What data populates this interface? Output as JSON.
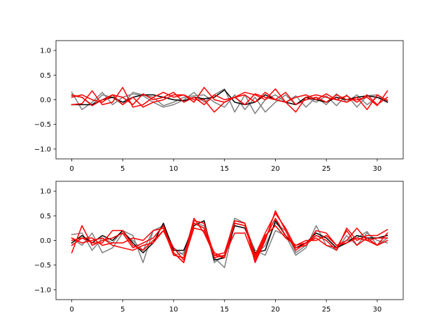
{
  "chart_data": [
    {
      "type": "line",
      "title": "",
      "xlabel": "",
      "ylabel": "",
      "xlim": [
        -1.55,
        32.55
      ],
      "ylim": [
        -1.2,
        1.2
      ],
      "xticks": [
        0,
        5,
        10,
        15,
        20,
        25,
        30
      ],
      "xtick_labels": [
        "0",
        "5",
        "10",
        "15",
        "20",
        "25",
        "30"
      ],
      "yticks": [
        -1.0,
        -0.5,
        0.0,
        0.5,
        1.0
      ],
      "ytick_labels": [
        "−1.0",
        "−0.5",
        "0.0",
        "0.5",
        "1.0"
      ],
      "grid": false,
      "x": [
        0,
        1,
        2,
        3,
        4,
        5,
        6,
        7,
        8,
        9,
        10,
        11,
        12,
        13,
        14,
        15,
        16,
        17,
        18,
        19,
        20,
        21,
        22,
        23,
        24,
        25,
        26,
        27,
        28,
        29,
        30,
        31
      ],
      "series": [
        {
          "color": "#808080",
          "values": [
            0.15,
            -0.2,
            -0.05,
            0.15,
            -0.1,
            0.05,
            0.12,
            0.08,
            -0.05,
            -0.15,
            -0.1,
            0.0,
            0.15,
            -0.05,
            0.1,
            0.22,
            -0.25,
            0.1,
            -0.28,
            0.0,
            0.1,
            -0.05,
            0.08,
            -0.15,
            0.05,
            -0.1,
            0.12,
            -0.05,
            0.1,
            -0.1,
            0.05,
            0.0
          ]
        },
        {
          "color": "#808080",
          "values": [
            0.08,
            0.05,
            -0.1,
            0.1,
            0.05,
            -0.1,
            0.15,
            0.1,
            0.05,
            -0.12,
            -0.05,
            0.05,
            0.08,
            0.1,
            -0.05,
            -0.15,
            0.1,
            -0.2,
            0.05,
            -0.25,
            -0.05,
            0.1,
            -0.1,
            0.05,
            -0.05,
            0.08,
            -0.12,
            0.1,
            -0.15,
            0.08,
            0.1,
            -0.05
          ]
        },
        {
          "color": "#000000",
          "values": [
            -0.1,
            -0.1,
            -0.1,
            0.0,
            0.05,
            -0.05,
            0.05,
            0.1,
            0.1,
            0.05,
            0.0,
            -0.02,
            0.05,
            0.02,
            0.05,
            0.2,
            -0.05,
            -0.1,
            -0.05,
            0.1,
            0.0,
            -0.05,
            -0.1,
            0.05,
            0.0,
            -0.05,
            0.05,
            0.0,
            0.05,
            0.08,
            0.05,
            -0.05
          ]
        },
        {
          "color": "#ff0000",
          "values": [
            -0.1,
            -0.08,
            0.18,
            -0.1,
            -0.05,
            0.25,
            -0.15,
            -0.1,
            0.05,
            0.15,
            0.05,
            0.1,
            -0.05,
            0.25,
            0.0,
            -0.05,
            0.05,
            0.15,
            0.1,
            0.0,
            0.22,
            -0.05,
            0.05,
            0.1,
            0.0,
            0.12,
            0.0,
            -0.05,
            0.05,
            -0.2,
            0.1,
            -0.02
          ]
        },
        {
          "color": "#ff0000",
          "values": [
            0.1,
            0.05,
            -0.12,
            0.0,
            0.1,
            0.05,
            -0.1,
            0.12,
            0.0,
            0.05,
            0.15,
            -0.05,
            0.05,
            -0.1,
            0.1,
            0.0,
            0.05,
            0.1,
            -0.05,
            0.15,
            0.0,
            -0.05,
            -0.25,
            0.05,
            0.1,
            0.05,
            0.0,
            0.08,
            -0.05,
            0.1,
            -0.1,
            0.05
          ]
        },
        {
          "color": "#ff0000",
          "values": [
            0.05,
            0.1,
            0.0,
            -0.05,
            0.1,
            -0.1,
            0.05,
            -0.15,
            -0.05,
            0.0,
            0.1,
            0.1,
            0.0,
            0.0,
            -0.25,
            -0.05,
            0.05,
            -0.1,
            0.12,
            0.05,
            0.0,
            0.15,
            -0.1,
            0.0,
            0.05,
            -0.05,
            0.1,
            0.0,
            0.0,
            0.05,
            -0.12,
            0.18
          ]
        }
      ]
    },
    {
      "type": "line",
      "title": "",
      "xlabel": "",
      "ylabel": "",
      "xlim": [
        -1.55,
        32.55
      ],
      "ylim": [
        -1.2,
        1.2
      ],
      "xticks": [
        0,
        5,
        10,
        15,
        20,
        25,
        30
      ],
      "xtick_labels": [
        "0",
        "5",
        "10",
        "15",
        "20",
        "25",
        "30"
      ],
      "yticks": [
        -1.0,
        -0.5,
        0.0,
        0.5,
        1.0
      ],
      "ytick_labels": [
        "−1.0",
        "−0.5",
        "0.0",
        "0.5",
        "1.0"
      ],
      "grid": false,
      "x": [
        0,
        1,
        2,
        3,
        4,
        5,
        6,
        7,
        8,
        9,
        10,
        11,
        12,
        13,
        14,
        15,
        16,
        17,
        18,
        19,
        20,
        21,
        22,
        23,
        24,
        25,
        26,
        27,
        28,
        29,
        30,
        31
      ],
      "series": [
        {
          "color": "#808080",
          "values": [
            0.12,
            0.15,
            -0.2,
            0.05,
            -0.05,
            0.2,
            0.1,
            -0.45,
            0.2,
            0.3,
            -0.15,
            -0.3,
            0.35,
            0.3,
            -0.35,
            -0.55,
            0.35,
            0.3,
            -0.2,
            -0.3,
            0.2,
            0.1,
            -0.3,
            -0.15,
            0.3,
            -0.1,
            -0.2,
            0.1,
            -0.1,
            0.15,
            0.0,
            -0.05
          ]
        },
        {
          "color": "#808080",
          "values": [
            0.05,
            -0.1,
            0.15,
            -0.25,
            -0.15,
            0.15,
            0.0,
            -0.2,
            0.2,
            0.25,
            -0.3,
            -0.25,
            0.4,
            0.35,
            -0.45,
            -0.3,
            0.45,
            0.35,
            -0.3,
            -0.1,
            0.35,
            0.2,
            -0.25,
            -0.1,
            0.1,
            0.05,
            -0.15,
            0.0,
            0.05,
            0.18,
            -0.1,
            0.05
          ]
        },
        {
          "color": "#000000",
          "values": [
            -0.05,
            0.1,
            -0.05,
            0.1,
            0.0,
            0.2,
            -0.05,
            -0.25,
            -0.05,
            0.35,
            -0.2,
            -0.2,
            0.3,
            0.4,
            -0.4,
            -0.35,
            0.3,
            0.25,
            -0.25,
            -0.2,
            0.4,
            0.1,
            -0.15,
            -0.05,
            0.15,
            0.05,
            -0.15,
            -0.05,
            0.1,
            0.05,
            0.05,
            0.1
          ]
        },
        {
          "color": "#ff0000",
          "values": [
            -0.25,
            0.3,
            -0.1,
            0.0,
            0.05,
            0.15,
            -0.15,
            -0.05,
            0.05,
            0.3,
            -0.25,
            -0.45,
            0.4,
            0.35,
            -0.3,
            -0.25,
            0.4,
            0.35,
            -0.45,
            0.0,
            0.6,
            0.2,
            -0.2,
            -0.05,
            0.1,
            0.0,
            -0.2,
            0.25,
            0.0,
            0.1,
            0.1,
            0.22
          ]
        },
        {
          "color": "#ff0000",
          "values": [
            0.0,
            0.05,
            -0.05,
            -0.05,
            0.2,
            0.2,
            -0.1,
            -0.2,
            0.0,
            0.2,
            -0.25,
            -0.45,
            0.35,
            0.25,
            -0.35,
            -0.3,
            0.15,
            0.15,
            -0.4,
            0.05,
            0.45,
            0.1,
            -0.1,
            -0.05,
            0.05,
            -0.1,
            -0.15,
            0.2,
            -0.1,
            0.05,
            -0.1,
            0.0
          ]
        },
        {
          "color": "#ff0000",
          "values": [
            -0.1,
            0.05,
            0.05,
            -0.1,
            -0.05,
            -0.05,
            0.05,
            0.0,
            0.2,
            0.25,
            -0.3,
            -0.35,
            0.45,
            0.15,
            -0.3,
            -0.35,
            0.35,
            0.3,
            -0.35,
            0.1,
            0.3,
            0.05,
            -0.1,
            0.0,
            0.0,
            0.1,
            -0.1,
            0.0,
            0.25,
            0.0,
            -0.1,
            0.15
          ]
        },
        {
          "color": "#ff0000",
          "values": [
            0.05,
            -0.05,
            0.0,
            0.05,
            -0.1,
            -0.15,
            -0.2,
            -0.1,
            -0.05,
            0.2,
            -0.15,
            -0.4,
            0.25,
            0.2,
            -0.25,
            -0.35,
            0.4,
            0.35,
            -0.3,
            0.15,
            0.55,
            0.25,
            -0.15,
            -0.1,
            0.2,
            0.15,
            -0.1,
            -0.05,
            0.05,
            0.0,
            0.05,
            0.05
          ]
        }
      ]
    }
  ]
}
